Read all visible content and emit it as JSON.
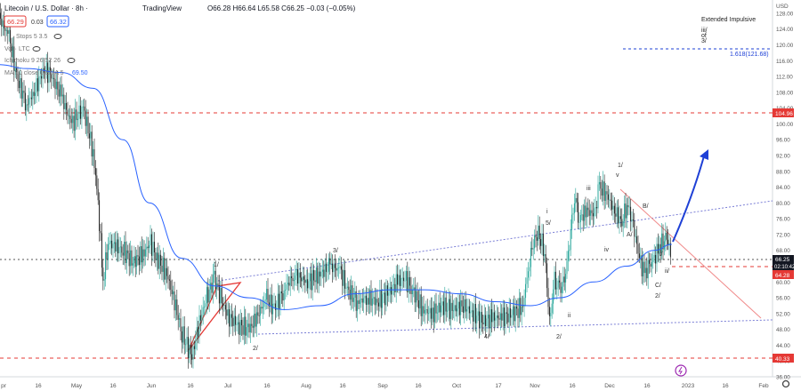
{
  "header": {
    "symbol": "Litecoin / U.S. Dollar · 8h ·",
    "brand": "TradingView",
    "ohlc": "O66.28 H66.64 L65.58 C66.25 −0.03 (−0.05%)",
    "bid": "66.29",
    "spread": "0.03",
    "ask": "66.32"
  },
  "indicators": [
    {
      "label": "Stops 5 3.5"
    },
    {
      "label": "Vol · LTC"
    },
    {
      "label": "Ichimoku 9 26 52 26"
    },
    {
      "label": "MA 50 close 0 SMA 5",
      "value": "69.50"
    }
  ],
  "currency": "USD",
  "price_tags": {
    "last": "66.25",
    "countdown": "02:10:42",
    "level_high": "104.96",
    "level_mid": "64.28",
    "level_low": "40.33"
  },
  "colors": {
    "up": "#26a69a",
    "down": "#222222",
    "ma": "#2962ff",
    "level": "#e53935",
    "channel": "#7b7fd6",
    "accent": "#1e40d6"
  },
  "annotations": {
    "top_right": [
      "Extended Impulsive",
      "iii/",
      "of",
      "3/"
    ],
    "fib": "1.618(121.68)",
    "waves": [
      "1/",
      "2/",
      "3/",
      "4/",
      "5/",
      "1/",
      "2/",
      "i",
      "ii",
      "iii",
      "iv",
      "v",
      "B/",
      "A/",
      "C/",
      "i/",
      "ii/",
      "2/"
    ]
  },
  "chart_data": {
    "type": "line",
    "title": "Litecoin / U.S. Dollar · 8h",
    "x_labels": [
      "pr",
      "16",
      "May",
      "16",
      "Jun",
      "16",
      "Jul",
      "16",
      "Aug",
      "16",
      "Sep",
      "16",
      "Oct",
      "17",
      "Nov",
      "16",
      "Dec",
      "16",
      "2023",
      "16",
      "Feb"
    ],
    "y_ticks": [
      36.0,
      40.0,
      44.0,
      48.0,
      52.0,
      56.0,
      60.0,
      64.0,
      68.0,
      72.0,
      76.0,
      80.0,
      84.0,
      88.0,
      92.0,
      96.0,
      100.0,
      104.0,
      108.0,
      112.0,
      116.0,
      120.0,
      124.0,
      128.0
    ],
    "ylim": [
      36,
      130
    ],
    "series": [
      {
        "name": "LTCUSD",
        "points": [
          [
            "Apr 01",
            127
          ],
          [
            "Apr 05",
            122
          ],
          [
            "Apr 08",
            112
          ],
          [
            "Apr 12",
            105
          ],
          [
            "Apr 15",
            108
          ],
          [
            "Apr 19",
            114
          ],
          [
            "Apr 22",
            112
          ],
          [
            "Apr 26",
            107
          ],
          [
            "Apr 30",
            100
          ],
          [
            "May 04",
            104
          ],
          [
            "May 08",
            93
          ],
          [
            "May 10",
            80
          ],
          [
            "May 12",
            60
          ],
          [
            "May 14",
            70
          ],
          [
            "May 17",
            69
          ],
          [
            "May 20",
            68
          ],
          [
            "May 24",
            65
          ],
          [
            "May 28",
            67
          ],
          [
            "May 31",
            70
          ],
          [
            "Jun 04",
            66
          ],
          [
            "Jun 08",
            62
          ],
          [
            "Jun 11",
            55
          ],
          [
            "Jun 14",
            47
          ],
          [
            "Jun 18",
            41
          ],
          [
            "Jun 21",
            50
          ],
          [
            "Jun 24",
            56
          ],
          [
            "Jun 27",
            61
          ],
          [
            "Jun 30",
            55
          ],
          [
            "Jul 03",
            51
          ],
          [
            "Jul 07",
            49
          ],
          [
            "Jul 11",
            48
          ],
          [
            "Jul 14",
            51
          ],
          [
            "Jul 18",
            56
          ],
          [
            "Jul 21",
            53
          ],
          [
            "Jul 25",
            58
          ],
          [
            "Jul 29",
            62
          ],
          [
            "Aug 03",
            60
          ],
          [
            "Aug 08",
            62
          ],
          [
            "Aug 12",
            64
          ],
          [
            "Aug 16",
            63
          ],
          [
            "Aug 19",
            58
          ],
          [
            "Aug 23",
            55
          ],
          [
            "Aug 27",
            56
          ],
          [
            "Aug 31",
            55
          ],
          [
            "Sep 04",
            57
          ],
          [
            "Sep 08",
            60
          ],
          [
            "Sep 11",
            61
          ],
          [
            "Sep 14",
            58
          ],
          [
            "Sep 18",
            53
          ],
          [
            "Sep 22",
            52
          ],
          [
            "Sep 26",
            54
          ],
          [
            "Sep 30",
            53
          ],
          [
            "Oct 04",
            54
          ],
          [
            "Oct 08",
            52
          ],
          [
            "Oct 12",
            50
          ],
          [
            "Oct 16",
            51
          ],
          [
            "Oct 20",
            51
          ],
          [
            "Oct 24",
            52
          ],
          [
            "Oct 28",
            54
          ],
          [
            "Nov 01",
            66
          ],
          [
            "Nov 04",
            73
          ],
          [
            "Nov 07",
            68
          ],
          [
            "Nov 09",
            50
          ],
          [
            "Nov 11",
            60
          ],
          [
            "Nov 13",
            58
          ],
          [
            "Nov 15",
            60
          ],
          [
            "Nov 17",
            70
          ],
          [
            "Nov 19",
            82
          ],
          [
            "Nov 21",
            76
          ],
          [
            "Nov 24",
            78
          ],
          [
            "Nov 27",
            77
          ],
          [
            "Nov 29",
            84
          ],
          [
            "Dec 01",
            82
          ],
          [
            "Dec 04",
            78
          ],
          [
            "Dec 07",
            75
          ],
          [
            "Dec 09",
            80
          ],
          [
            "Dec 11",
            76
          ],
          [
            "Dec 14",
            66
          ],
          [
            "Dec 16",
            62
          ],
          [
            "Dec 18",
            64
          ],
          [
            "Dec 20",
            66
          ],
          [
            "Dec 22",
            69
          ],
          [
            "Dec 25",
            71
          ],
          [
            "Dec 27",
            66.25
          ]
        ]
      },
      {
        "name": "MA 50 close 0 SMA 5",
        "points": [
          [
            "Apr 01",
            115
          ],
          [
            "Apr 12",
            114
          ],
          [
            "Apr 26",
            113
          ],
          [
            "May 08",
            109
          ],
          [
            "May 20",
            96
          ],
          [
            "Jun 01",
            80
          ],
          [
            "Jun 14",
            66
          ],
          [
            "Jun 27",
            59
          ],
          [
            "Jul 11",
            56
          ],
          [
            "Jul 25",
            53
          ],
          [
            "Aug 08",
            54
          ],
          [
            "Aug 22",
            57
          ],
          [
            "Sep 05",
            58
          ],
          [
            "Sep 19",
            58
          ],
          [
            "Oct 03",
            57
          ],
          [
            "Oct 17",
            55
          ],
          [
            "Oct 31",
            54
          ],
          [
            "Nov 13",
            56
          ],
          [
            "Nov 27",
            60
          ],
          [
            "Dec 09",
            64
          ],
          [
            "Dec 20",
            68
          ],
          [
            "Dec 27",
            69.5
          ]
        ]
      }
    ]
  }
}
